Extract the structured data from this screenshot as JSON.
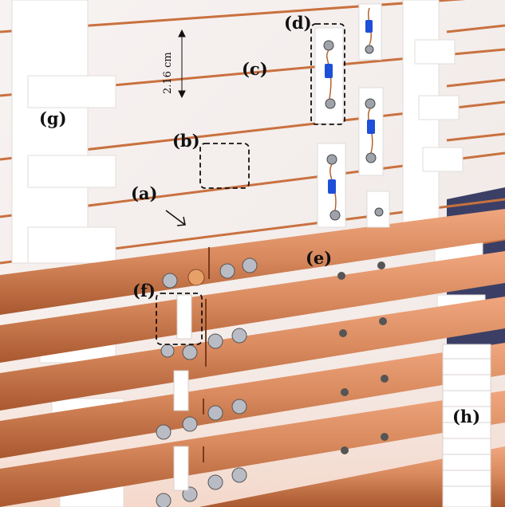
{
  "labels": {
    "a": "(a)",
    "b": "(b)",
    "c": "(c)",
    "d": "(d)",
    "e": "(e)",
    "f": "(f)",
    "g": "(g)",
    "h": "(h)"
  },
  "dimension_text": "2.16 cm",
  "colors": {
    "copper": "#d98a5e",
    "copper_dark": "#a9582f",
    "foam": "#fbfbfb",
    "resistor_blue": "#1e4fd8",
    "backdrop": "#3b3f66"
  }
}
